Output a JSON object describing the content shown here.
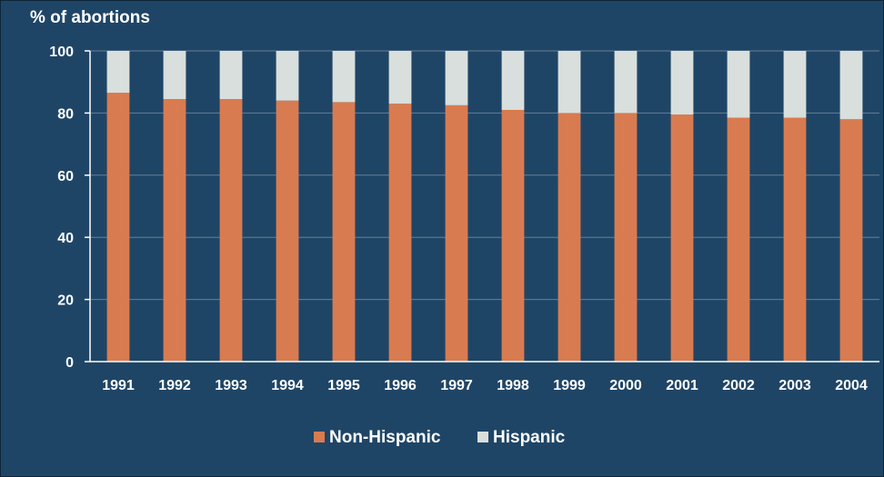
{
  "chart_data": {
    "type": "bar",
    "stacked": true,
    "ylabel": "% of abortions",
    "ylim": [
      0,
      100
    ],
    "yticks": [
      0,
      20,
      40,
      60,
      80,
      100
    ],
    "grid": true,
    "legend_position": "bottom",
    "categories": [
      "1991",
      "1992",
      "1993",
      "1994",
      "1995",
      "1996",
      "1997",
      "1998",
      "1999",
      "2000",
      "2001",
      "2002",
      "2003",
      "2004"
    ],
    "series": [
      {
        "name": "Non-Hispanic",
        "color": "#d97b50",
        "values": [
          86.5,
          84.5,
          84.5,
          84,
          83.5,
          83,
          82.5,
          81,
          80,
          80,
          79.5,
          78.5,
          78.5,
          78
        ]
      },
      {
        "name": "Hispanic",
        "color": "#d9dfdc",
        "values": [
          13.5,
          15.5,
          15.5,
          16,
          16.5,
          17,
          17.5,
          19,
          20,
          20,
          20.5,
          21.5,
          21.5,
          22
        ]
      }
    ],
    "colors": {
      "background": "#1f4566",
      "gridline": "#9db0c0",
      "axis": "#ffffff",
      "text": "#ffffff"
    }
  }
}
